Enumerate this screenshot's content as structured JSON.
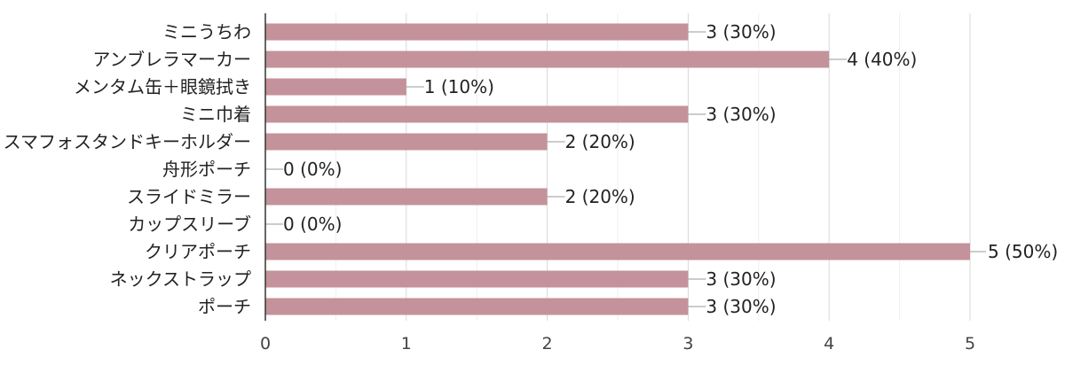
{
  "chart_data": {
    "type": "bar",
    "orientation": "horizontal",
    "categories": [
      "ミニうちわ",
      "アンブレラマーカー",
      "メンタム缶＋眼鏡拭き",
      "ミニ巾着",
      "スマフォスタンドキーホルダー",
      "舟形ポーチ",
      "スライドミラー",
      "カップスリーブ",
      "クリアポーチ",
      "ネックストラップ",
      "ポーチ"
    ],
    "values": [
      3,
      4,
      1,
      3,
      2,
      0,
      2,
      0,
      5,
      3,
      3
    ],
    "value_labels": [
      "3 (30%)",
      "4 (40%)",
      "1 (10%)",
      "3 (30%)",
      "2 (20%)",
      "0 (0%)",
      "2 (20%)",
      "0 (0%)",
      "5 (50%)",
      "3 (30%)",
      "3 (30%)"
    ],
    "x_ticks": [
      "0",
      "1",
      "2",
      "3",
      "4",
      "5"
    ],
    "xlim": [
      0,
      5
    ],
    "grid": true,
    "bar_color": "#c4929a"
  }
}
